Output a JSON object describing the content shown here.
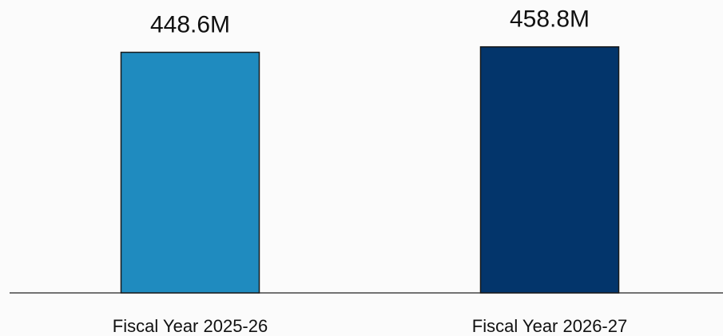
{
  "chart_data": {
    "type": "bar",
    "categories": [
      "Fiscal Year 2025-26",
      "Fiscal Year 2026-27"
    ],
    "values": [
      448.6,
      458.8
    ],
    "value_labels": [
      "448.6M",
      "458.8M"
    ],
    "colors": [
      "#1f8bbf",
      "#03356b"
    ]
  }
}
